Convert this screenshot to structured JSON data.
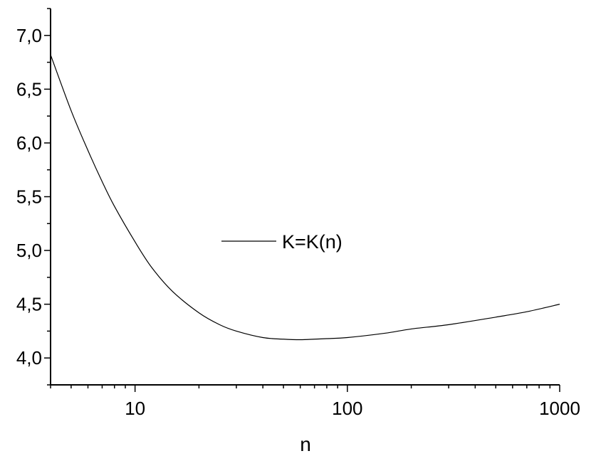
{
  "chart_data": {
    "type": "line",
    "xlabel": "n",
    "ylabel": "",
    "title": "",
    "x_scale": "log",
    "xlim": [
      4,
      1000
    ],
    "ylim": [
      3.75,
      7.25
    ],
    "x_ticks": [
      10,
      100,
      1000
    ],
    "x_tick_labels": [
      "10",
      "100",
      "1000"
    ],
    "y_ticks": [
      4.0,
      4.5,
      5.0,
      5.5,
      6.0,
      6.5,
      7.0
    ],
    "y_tick_labels": [
      "4,0",
      "4,5",
      "5,0",
      "5,5",
      "6,0",
      "6,5",
      "7,0"
    ],
    "grid": false,
    "legend_position": "center",
    "series": [
      {
        "name": "K=K(n)",
        "color": "#000000",
        "x": [
          4,
          5,
          6,
          7,
          8,
          10,
          12,
          15,
          20,
          25,
          30,
          40,
          50,
          60,
          70,
          80,
          100,
          150,
          200,
          300,
          500,
          700,
          1000
        ],
        "y": [
          6.82,
          6.3,
          5.93,
          5.64,
          5.41,
          5.08,
          4.84,
          4.62,
          4.42,
          4.31,
          4.25,
          4.19,
          4.175,
          4.17,
          4.175,
          4.18,
          4.19,
          4.23,
          4.27,
          4.31,
          4.38,
          4.43,
          4.5
        ]
      }
    ]
  }
}
